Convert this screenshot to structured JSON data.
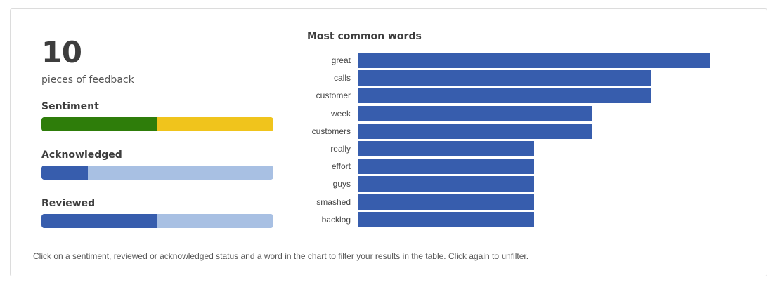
{
  "summary": {
    "count": "10",
    "caption": "pieces of feedback"
  },
  "sentiment": {
    "label": "Sentiment",
    "segments": [
      {
        "name": "positive",
        "fraction": 0.5,
        "color": "#2e7d0a"
      },
      {
        "name": "neutral",
        "fraction": 0.5,
        "color": "#f0c41c"
      }
    ]
  },
  "acknowledged": {
    "label": "Acknowledged",
    "segments": [
      {
        "name": "acknowledged",
        "fraction": 0.2,
        "color": "#375dad"
      },
      {
        "name": "not-acknowledged",
        "fraction": 0.8,
        "color": "#a8c0e3"
      }
    ]
  },
  "reviewed": {
    "label": "Reviewed",
    "segments": [
      {
        "name": "reviewed",
        "fraction": 0.5,
        "color": "#375dad"
      },
      {
        "name": "not-reviewed",
        "fraction": 0.5,
        "color": "#a8c0e3"
      }
    ]
  },
  "chart_data": {
    "type": "bar",
    "orientation": "horizontal",
    "title": "Most common words",
    "categories": [
      "great",
      "calls",
      "customer",
      "week",
      "customers",
      "really",
      "effort",
      "guys",
      "smashed",
      "backlog"
    ],
    "values": [
      6,
      5,
      5,
      4,
      4,
      3,
      3,
      3,
      3,
      3
    ],
    "xlim": [
      0,
      6
    ],
    "bar_color": "#375dad",
    "grid": false,
    "legend": "none"
  },
  "footer": {
    "text": "Click on a sentiment, reviewed or acknowledged status and a word in the chart to filter your results in the table. Click again to unfilter."
  }
}
